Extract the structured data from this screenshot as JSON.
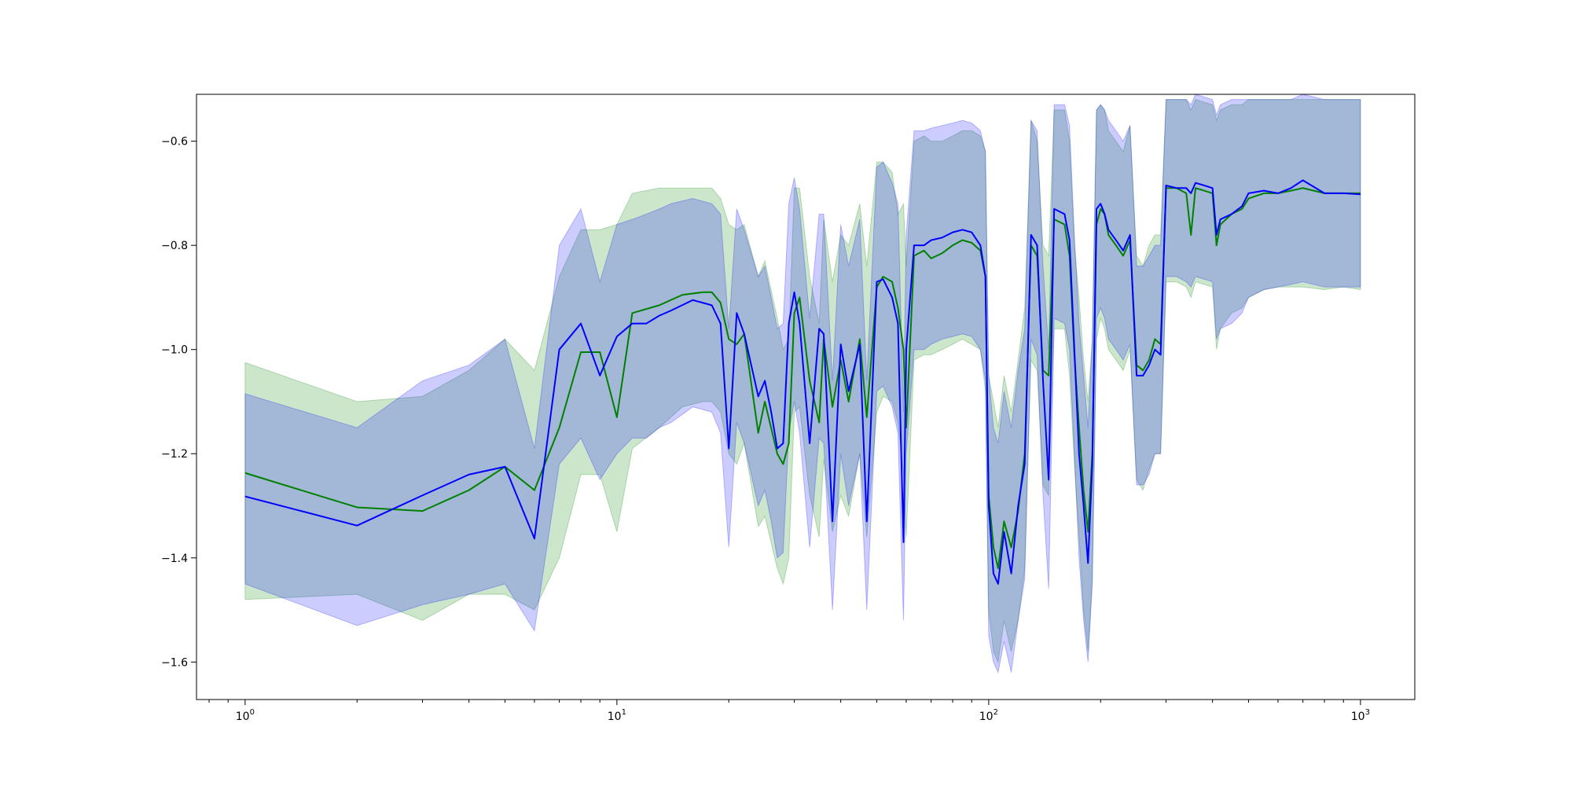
{
  "chart_data": {
    "type": "line",
    "title": "",
    "xlabel": "",
    "ylabel": "",
    "xscale": "log",
    "xlim": [
      0.74,
      1400
    ],
    "ylim": [
      -1.672,
      -0.51
    ],
    "grid": false,
    "legend": "none",
    "x_ticks": [
      {
        "base": "10",
        "exp": "0",
        "value": 1
      },
      {
        "base": "10",
        "exp": "1",
        "value": 10
      },
      {
        "base": "10",
        "exp": "2",
        "value": 100
      },
      {
        "base": "10",
        "exp": "3",
        "value": 1000
      }
    ],
    "y_ticks": [
      {
        "label": "−0.6",
        "value": -0.6
      },
      {
        "label": "−0.8",
        "value": -0.8
      },
      {
        "label": "−1.0",
        "value": -1.0
      },
      {
        "label": "−1.2",
        "value": -1.2
      },
      {
        "label": "−1.4",
        "value": -1.4
      },
      {
        "label": "−1.6",
        "value": -1.6
      }
    ],
    "series": [
      {
        "color": "#008000",
        "band_color": "#008000",
        "x": [
          1,
          2,
          3,
          4,
          5,
          6,
          7,
          8,
          9,
          10,
          11,
          13,
          15,
          17,
          18,
          19,
          20,
          21,
          22,
          24,
          25,
          27,
          28,
          29,
          30,
          31,
          33,
          35,
          36,
          38,
          40,
          42,
          45,
          47,
          50,
          52,
          55,
          57,
          59,
          60,
          63,
          67,
          70,
          75,
          80,
          85,
          90,
          95,
          98,
          100,
          103,
          106,
          110,
          115,
          120,
          125,
          130,
          135,
          140,
          145,
          150,
          160,
          165,
          170,
          175,
          180,
          185,
          190,
          195,
          200,
          205,
          210,
          220,
          230,
          240,
          250,
          260,
          270,
          280,
          290,
          300,
          320,
          340,
          350,
          360,
          380,
          400,
          410,
          420,
          450,
          480,
          500,
          550,
          600,
          650,
          700,
          800,
          900,
          1000
        ],
        "y": [
          -1.237,
          -1.303,
          -1.31,
          -1.27,
          -1.225,
          -1.27,
          -1.15,
          -1.005,
          -1.005,
          -1.13,
          -0.93,
          -0.915,
          -0.895,
          -0.89,
          -0.89,
          -0.91,
          -0.98,
          -0.99,
          -0.97,
          -1.16,
          -1.1,
          -1.2,
          -1.22,
          -1.18,
          -0.93,
          -0.9,
          -1.06,
          -1.14,
          -0.98,
          -1.11,
          -1.02,
          -1.1,
          -0.98,
          -1.13,
          -0.88,
          -0.86,
          -0.87,
          -0.92,
          -1.0,
          -1.15,
          -0.82,
          -0.81,
          -0.825,
          -0.815,
          -0.8,
          -0.79,
          -0.795,
          -0.81,
          -0.86,
          -1.28,
          -1.38,
          -1.42,
          -1.33,
          -1.38,
          -1.31,
          -1.2,
          -0.8,
          -0.82,
          -1.04,
          -1.05,
          -0.75,
          -0.76,
          -0.82,
          -1.01,
          -1.15,
          -1.27,
          -1.35,
          -1.2,
          -0.76,
          -0.73,
          -0.74,
          -0.78,
          -0.8,
          -0.82,
          -0.79,
          -1.03,
          -1.04,
          -1.02,
          -0.98,
          -0.99,
          -0.69,
          -0.69,
          -0.7,
          -0.78,
          -0.69,
          -0.695,
          -0.7,
          -0.8,
          -0.76,
          -0.74,
          -0.73,
          -0.71,
          -0.7,
          -0.7,
          -0.695,
          -0.69,
          -0.7,
          -0.7,
          -0.7
        ],
        "upper": [
          -1.025,
          -1.1,
          -1.09,
          -1.04,
          -0.98,
          -1.04,
          -0.86,
          -0.77,
          -0.77,
          -0.76,
          -0.7,
          -0.69,
          -0.69,
          -0.69,
          -0.69,
          -0.71,
          -0.76,
          -0.77,
          -0.76,
          -0.86,
          -0.83,
          -0.94,
          -1.0,
          -0.98,
          -0.69,
          -0.69,
          -0.86,
          -0.95,
          -0.75,
          -0.87,
          -0.78,
          -0.8,
          -0.72,
          -0.84,
          -0.64,
          -0.64,
          -0.66,
          -0.74,
          -0.72,
          -0.84,
          -0.6,
          -0.59,
          -0.6,
          -0.6,
          -0.59,
          -0.58,
          -0.58,
          -0.59,
          -0.62,
          -1.05,
          -1.1,
          -1.15,
          -1.05,
          -1.12,
          -1.02,
          -0.92,
          -0.56,
          -0.6,
          -0.8,
          -0.82,
          -0.54,
          -0.54,
          -0.6,
          -0.8,
          -0.9,
          -1.02,
          -1.1,
          -0.98,
          -0.54,
          -0.53,
          -0.54,
          -0.58,
          -0.6,
          -0.62,
          -0.57,
          -0.82,
          -0.84,
          -0.8,
          -0.78,
          -0.78,
          -0.52,
          -0.52,
          -0.52,
          -0.54,
          -0.52,
          -0.525,
          -0.53,
          -0.56,
          -0.54,
          -0.53,
          -0.53,
          -0.52,
          -0.52,
          -0.52,
          -0.52,
          -0.52,
          -0.52,
          -0.52,
          -0.52
        ],
        "lower": [
          -1.48,
          -1.47,
          -1.52,
          -1.47,
          -1.47,
          -1.5,
          -1.4,
          -1.24,
          -1.24,
          -1.35,
          -1.19,
          -1.15,
          -1.11,
          -1.1,
          -1.1,
          -1.12,
          -1.2,
          -1.22,
          -1.18,
          -1.34,
          -1.32,
          -1.42,
          -1.45,
          -1.4,
          -1.12,
          -1.11,
          -1.28,
          -1.36,
          -1.21,
          -1.35,
          -1.28,
          -1.32,
          -1.2,
          -1.36,
          -1.12,
          -1.09,
          -1.1,
          -1.14,
          -1.24,
          -1.36,
          -1.02,
          -1.01,
          -1.01,
          -1.0,
          -0.99,
          -0.98,
          -0.99,
          -1.0,
          -1.08,
          -1.5,
          -1.58,
          -1.6,
          -1.52,
          -1.58,
          -1.52,
          -1.42,
          -1.02,
          -1.04,
          -1.26,
          -1.28,
          -0.96,
          -0.96,
          -1.05,
          -1.22,
          -1.36,
          -1.5,
          -1.58,
          -1.44,
          -0.98,
          -0.94,
          -0.96,
          -1.0,
          -1.02,
          -1.04,
          -1.0,
          -1.25,
          -1.27,
          -1.23,
          -1.2,
          -1.2,
          -0.87,
          -0.87,
          -0.88,
          -0.9,
          -0.87,
          -0.875,
          -0.88,
          -1.0,
          -0.96,
          -0.93,
          -0.92,
          -0.9,
          -0.885,
          -0.88,
          -0.88,
          -0.88,
          -0.885,
          -0.88,
          -0.885
        ]
      },
      {
        "color": "#0000ff",
        "band_color": "#0000ff",
        "x": [
          1,
          2,
          3,
          4,
          5,
          6,
          7,
          8,
          9,
          10,
          11,
          12,
          13,
          14,
          16,
          18,
          19,
          20,
          21,
          22,
          24,
          25,
          26,
          27,
          28,
          29,
          30,
          31,
          33,
          35,
          36,
          38,
          40,
          42,
          45,
          47,
          50,
          52,
          55,
          57,
          59,
          60,
          63,
          67,
          70,
          75,
          80,
          85,
          90,
          95,
          98,
          100,
          103,
          106,
          110,
          115,
          120,
          125,
          130,
          135,
          140,
          145,
          150,
          160,
          165,
          170,
          175,
          180,
          185,
          190,
          195,
          200,
          205,
          210,
          220,
          230,
          240,
          250,
          260,
          270,
          280,
          290,
          300,
          320,
          340,
          350,
          360,
          380,
          400,
          410,
          420,
          450,
          480,
          500,
          550,
          600,
          650,
          700,
          800,
          900,
          1000
        ],
        "y": [
          -1.282,
          -1.338,
          -1.28,
          -1.24,
          -1.225,
          -1.363,
          -1.0,
          -0.95,
          -1.05,
          -0.975,
          -0.95,
          -0.95,
          -0.935,
          -0.925,
          -0.905,
          -0.915,
          -0.95,
          -1.19,
          -0.93,
          -0.97,
          -1.09,
          -1.06,
          -1.12,
          -1.19,
          -1.18,
          -0.95,
          -0.89,
          -0.95,
          -1.18,
          -0.96,
          -0.97,
          -1.33,
          -0.99,
          -1.08,
          -0.99,
          -1.33,
          -0.87,
          -0.865,
          -0.9,
          -0.95,
          -1.37,
          -1.0,
          -0.8,
          -0.8,
          -0.79,
          -0.785,
          -0.775,
          -0.77,
          -0.775,
          -0.8,
          -0.86,
          -1.3,
          -1.43,
          -1.45,
          -1.35,
          -1.43,
          -1.3,
          -1.22,
          -0.78,
          -0.8,
          -1.06,
          -1.25,
          -0.73,
          -0.74,
          -0.79,
          -1.0,
          -1.2,
          -1.3,
          -1.41,
          -1.22,
          -0.73,
          -0.72,
          -0.74,
          -0.77,
          -0.79,
          -0.81,
          -0.78,
          -1.05,
          -1.05,
          -1.03,
          -1.0,
          -1.01,
          -0.685,
          -0.69,
          -0.69,
          -0.7,
          -0.68,
          -0.685,
          -0.69,
          -0.78,
          -0.75,
          -0.74,
          -0.725,
          -0.7,
          -0.695,
          -0.7,
          -0.69,
          -0.675,
          -0.7,
          -0.7,
          -0.702
        ],
        "upper": [
          -1.085,
          -1.15,
          -1.06,
          -1.03,
          -0.98,
          -1.19,
          -0.8,
          -0.73,
          -0.87,
          -0.76,
          -0.75,
          -0.74,
          -0.73,
          -0.72,
          -0.71,
          -0.72,
          -0.74,
          -0.96,
          -0.73,
          -0.77,
          -0.86,
          -0.84,
          -0.9,
          -0.96,
          -0.95,
          -0.72,
          -0.67,
          -0.73,
          -0.94,
          -0.74,
          -0.74,
          -1.06,
          -0.76,
          -0.84,
          -0.75,
          -1.06,
          -0.65,
          -0.64,
          -0.68,
          -0.72,
          -1.12,
          -0.78,
          -0.58,
          -0.58,
          -0.575,
          -0.57,
          -0.565,
          -0.56,
          -0.565,
          -0.58,
          -0.62,
          -1.05,
          -1.15,
          -1.18,
          -1.08,
          -1.15,
          -1.04,
          -0.96,
          -0.56,
          -0.58,
          -0.84,
          -1.0,
          -0.53,
          -0.53,
          -0.57,
          -0.78,
          -0.95,
          -1.05,
          -1.15,
          -0.98,
          -0.54,
          -0.53,
          -0.54,
          -0.56,
          -0.58,
          -0.6,
          -0.57,
          -0.84,
          -0.84,
          -0.82,
          -0.8,
          -0.8,
          -0.52,
          -0.52,
          -0.52,
          -0.53,
          -0.51,
          -0.515,
          -0.52,
          -0.55,
          -0.53,
          -0.52,
          -0.52,
          -0.52,
          -0.52,
          -0.52,
          -0.52,
          -0.51,
          -0.52,
          -0.52,
          -0.52
        ],
        "lower": [
          -1.45,
          -1.53,
          -1.49,
          -1.47,
          -1.45,
          -1.54,
          -1.22,
          -1.17,
          -1.25,
          -1.2,
          -1.17,
          -1.17,
          -1.15,
          -1.14,
          -1.11,
          -1.12,
          -1.16,
          -1.38,
          -1.14,
          -1.18,
          -1.3,
          -1.27,
          -1.33,
          -1.4,
          -1.39,
          -1.16,
          -1.1,
          -1.16,
          -1.38,
          -1.17,
          -1.18,
          -1.5,
          -1.2,
          -1.3,
          -1.2,
          -1.5,
          -1.08,
          -1.07,
          -1.11,
          -1.16,
          -1.52,
          -1.2,
          -1.0,
          -1.0,
          -0.99,
          -0.98,
          -0.975,
          -0.97,
          -0.975,
          -1.0,
          -1.06,
          -1.55,
          -1.6,
          -1.62,
          -1.56,
          -1.62,
          -1.52,
          -1.44,
          -0.98,
          -1.01,
          -1.28,
          -1.46,
          -0.94,
          -0.95,
          -1.0,
          -1.2,
          -1.4,
          -1.52,
          -1.6,
          -1.45,
          -0.94,
          -0.92,
          -0.94,
          -0.98,
          -1.0,
          -1.02,
          -0.99,
          -1.26,
          -1.26,
          -1.24,
          -1.2,
          -1.2,
          -0.86,
          -0.86,
          -0.87,
          -0.88,
          -0.86,
          -0.865,
          -0.87,
          -0.98,
          -0.96,
          -0.95,
          -0.93,
          -0.9,
          -0.885,
          -0.88,
          -0.875,
          -0.87,
          -0.88,
          -0.88,
          -0.88
        ]
      }
    ]
  }
}
